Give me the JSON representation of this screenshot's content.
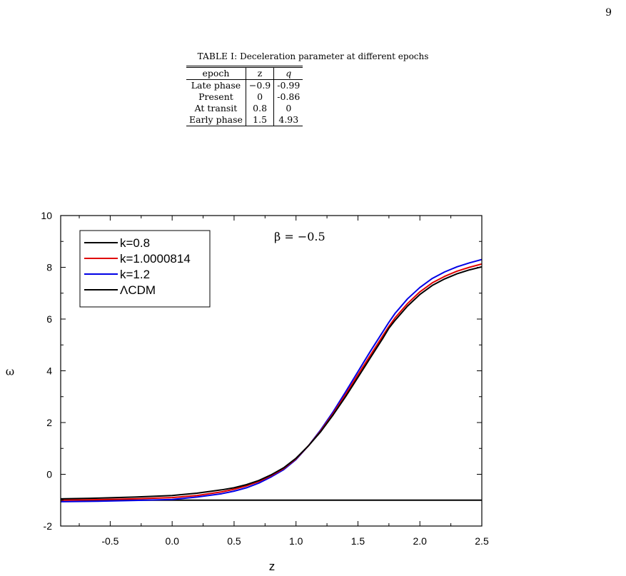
{
  "page_number": "9",
  "table": {
    "caption_prefix": "TABLE I:",
    "caption_text": "Deceleration parameter at different epochs",
    "headers": [
      "epoch",
      "z",
      "q"
    ],
    "rows": [
      [
        "Late phase",
        "−0.9",
        "-0.99"
      ],
      [
        "Present",
        "0",
        "-0.86"
      ],
      [
        "At transit",
        "0.8",
        "0"
      ],
      [
        "Early phase",
        "1.5",
        "4.93"
      ]
    ]
  },
  "chart_data": {
    "type": "line",
    "title": "",
    "annotation": "β = −0.5",
    "xlabel": "z",
    "ylabel": "ω",
    "xlim": [
      -0.9,
      2.5
    ],
    "ylim": [
      -2,
      10
    ],
    "xticks": [
      -0.5,
      0.0,
      0.5,
      1.0,
      1.5,
      2.0,
      2.5
    ],
    "xtick_labels": [
      "-0.5",
      "0.0",
      "0.5",
      "1.0",
      "1.5",
      "2.0",
      "2.5"
    ],
    "yticks": [
      -2,
      0,
      2,
      4,
      6,
      8,
      10
    ],
    "ytick_labels": [
      "-2",
      "0",
      "2",
      "4",
      "6",
      "8",
      "10"
    ],
    "grid": false,
    "legend_position": "top-left",
    "x": [
      -0.9,
      -0.6,
      -0.3,
      0.0,
      0.2,
      0.4,
      0.5,
      0.6,
      0.7,
      0.8,
      0.9,
      1.0,
      1.1,
      1.2,
      1.3,
      1.4,
      1.5,
      1.6,
      1.7,
      1.75,
      1.8,
      1.9,
      2.0,
      2.1,
      2.2,
      2.3,
      2.4,
      2.5
    ],
    "series": [
      {
        "name": "k=0.8",
        "color": "#000000",
        "values": [
          -0.95,
          -0.92,
          -0.88,
          -0.82,
          -0.73,
          -0.6,
          -0.52,
          -0.4,
          -0.24,
          -0.02,
          0.25,
          0.62,
          1.1,
          1.65,
          2.3,
          3.0,
          3.75,
          4.5,
          5.25,
          5.65,
          5.95,
          6.5,
          6.95,
          7.3,
          7.55,
          7.75,
          7.9,
          8.02
        ]
      },
      {
        "name": "k=1.0000814",
        "color": "#e00000",
        "values": [
          -1.0,
          -0.98,
          -0.95,
          -0.9,
          -0.82,
          -0.68,
          -0.58,
          -0.45,
          -0.28,
          -0.05,
          0.22,
          0.6,
          1.1,
          1.68,
          2.35,
          3.08,
          3.85,
          4.6,
          5.35,
          5.72,
          6.05,
          6.6,
          7.05,
          7.4,
          7.65,
          7.85,
          8.0,
          8.13
        ]
      },
      {
        "name": "k=1.2",
        "color": "#0000e6",
        "values": [
          -1.06,
          -1.04,
          -1.01,
          -0.97,
          -0.88,
          -0.75,
          -0.65,
          -0.52,
          -0.34,
          -0.1,
          0.18,
          0.57,
          1.1,
          1.72,
          2.42,
          3.18,
          3.97,
          4.75,
          5.5,
          5.88,
          6.22,
          6.78,
          7.22,
          7.57,
          7.82,
          8.02,
          8.17,
          8.3
        ]
      },
      {
        "name": "ΛCDM",
        "color": "#000000",
        "values": [
          -1,
          -1,
          -1,
          -1,
          -1,
          -1,
          -1,
          -1,
          -1,
          -1,
          -1,
          -1,
          -1,
          -1,
          -1,
          -1,
          -1,
          -1,
          -1,
          -1,
          -1,
          -1,
          -1,
          -1,
          -1,
          -1,
          -1,
          -1
        ]
      }
    ]
  }
}
